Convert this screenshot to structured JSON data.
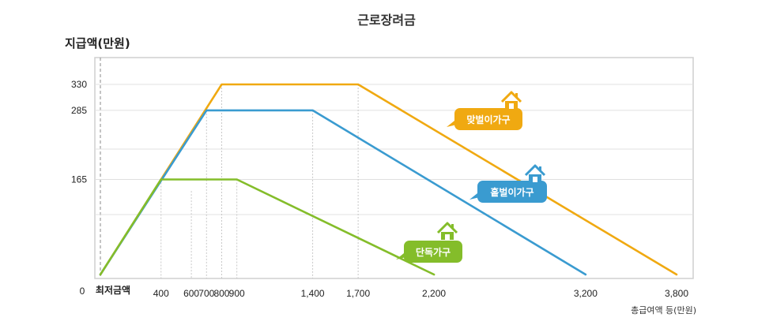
{
  "chart_data": {
    "type": "line",
    "title": "근로장려금",
    "ylabel": "지급액(만원)",
    "xlabel": "총급여액 등(만원)",
    "x_origin_label": "0",
    "x_min_label": "최저금액",
    "x_ticks": [
      400,
      600,
      700,
      800,
      900,
      1400,
      1700,
      2200,
      3200,
      3800
    ],
    "x_tick_labels": [
      "400",
      "600",
      "700",
      "800",
      "900",
      "1,400",
      "1,700",
      "2,200",
      "3,200",
      "3,800"
    ],
    "y_ticks": [
      165,
      285,
      330
    ],
    "y_tick_labels": [
      "165",
      "285",
      "330"
    ],
    "xlim": [
      0,
      3800
    ],
    "ylim": [
      0,
      330
    ],
    "grid": true,
    "series": [
      {
        "name": "맞벌이가구",
        "color": "#F0A911",
        "points": [
          [
            0,
            0
          ],
          [
            800,
            330
          ],
          [
            1700,
            330
          ],
          [
            3800,
            0
          ]
        ]
      },
      {
        "name": "홑벌이가구",
        "color": "#3A9BD0",
        "points": [
          [
            0,
            0
          ],
          [
            700,
            285
          ],
          [
            1400,
            285
          ],
          [
            3200,
            0
          ]
        ]
      },
      {
        "name": "단독가구",
        "color": "#84BD2A",
        "points": [
          [
            0,
            0
          ],
          [
            400,
            165
          ],
          [
            900,
            165
          ],
          [
            2200,
            0
          ]
        ]
      }
    ]
  },
  "icons": [
    "house-icon"
  ]
}
